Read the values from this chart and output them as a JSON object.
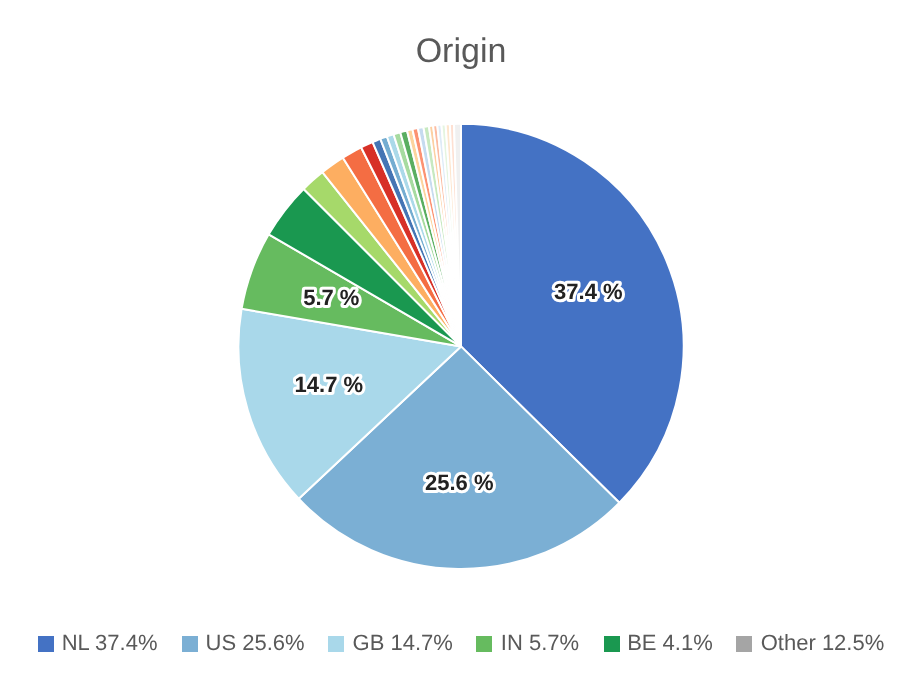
{
  "chart_data": {
    "type": "pie",
    "title": "Origin",
    "categories": [
      "NL 37.4%",
      "US 25.6%",
      "GB 14.7%",
      "IN 5.7%",
      "BE 4.1%",
      null,
      null,
      null,
      null,
      null,
      null,
      null,
      null,
      null,
      null,
      null,
      null,
      null,
      null,
      null,
      null,
      null,
      null,
      null,
      null
    ],
    "values": [
      37.4,
      25.6,
      14.7,
      5.7,
      4.1,
      1.8,
      1.8,
      1.5,
      0.9,
      0.6,
      0.5,
      0.5,
      0.5,
      0.5,
      0.4,
      0.4,
      0.4,
      0.4,
      0.3,
      0.3,
      0.3,
      0.3,
      0.3,
      0.3,
      0.5
    ],
    "colors": [
      "#4472c4",
      "#7bafd4",
      "#a9d8ea",
      "#66bb5f",
      "#1a9850",
      "#a6d96a",
      "#fdae61",
      "#f46d43",
      "#d73027",
      "#4575b4",
      "#74add1",
      "#abd9e9",
      "#a6dba0",
      "#5aae61",
      "#fdd49e",
      "#fc9272",
      "#c6dbef",
      "#c7e9c0",
      "#fdd0a2",
      "#fcbba1",
      "#deebf7",
      "#e5f5e0",
      "#fee6ce",
      "#fee0d2",
      "#f0f0f0"
    ],
    "value_labels": [
      "37.4 %",
      "25.6 %",
      "14.7 %",
      "5.7 %",
      null,
      null,
      null,
      null,
      null,
      null,
      null,
      null,
      null,
      null,
      null,
      null,
      null,
      null,
      null,
      null,
      null,
      null,
      null,
      null,
      null
    ],
    "legend": "bottom",
    "annotations": [
      "Other 12.5%"
    ]
  }
}
